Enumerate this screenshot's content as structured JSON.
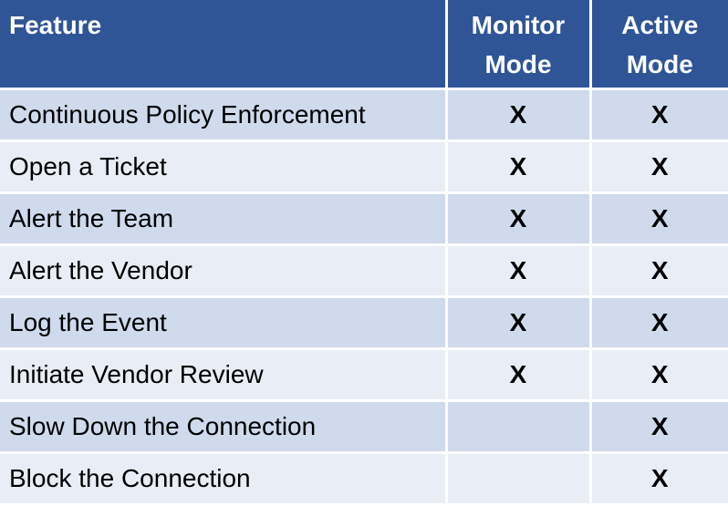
{
  "table": {
    "headers": [
      "Feature",
      "Monitor Mode",
      "Active Mode"
    ],
    "rows": [
      {
        "feature": "Continuous Policy Enforcement",
        "monitor": "X",
        "active": "X"
      },
      {
        "feature": "Open a Ticket",
        "monitor": "X",
        "active": "X"
      },
      {
        "feature": "Alert the Team",
        "monitor": "X",
        "active": "X"
      },
      {
        "feature": "Alert the Vendor",
        "monitor": "X",
        "active": "X"
      },
      {
        "feature": "Log the Event",
        "monitor": "X",
        "active": "X"
      },
      {
        "feature": "Initiate Vendor Review",
        "monitor": "X",
        "active": "X"
      },
      {
        "feature": "Slow Down the Connection",
        "monitor": "",
        "active": "X"
      },
      {
        "feature": "Block the Connection",
        "monitor": "",
        "active": "X"
      }
    ]
  },
  "colors": {
    "header": "#2F5597",
    "row_dark": "#CFDAEC",
    "row_light": "#E9EDF5"
  }
}
